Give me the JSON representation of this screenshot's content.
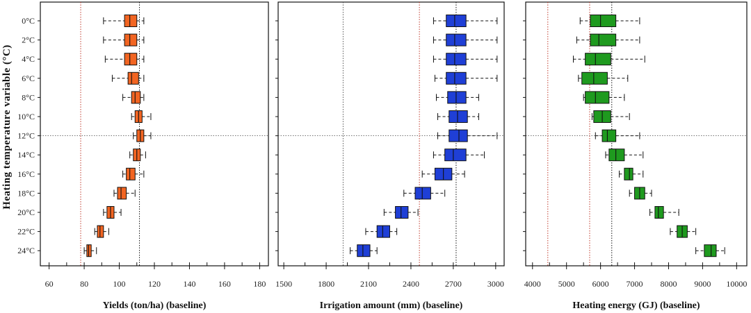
{
  "chart_data": {
    "type": "boxplot",
    "ylabel": "Heating temperature variable (°C)",
    "categories": [
      "0°C",
      "2°C",
      "4°C",
      "6°C",
      "8°C",
      "10°C",
      "12°C",
      "14°C",
      "16°C",
      "18°C",
      "20°C",
      "22°C",
      "24°C"
    ],
    "baseline_row": "12°C",
    "panels": [
      {
        "xlabel": "Yields (ton/ha) (baseline)",
        "xlim": [
          55,
          185
        ],
        "ticks": [
          60,
          80,
          100,
          120,
          140,
          160,
          180
        ],
        "color": "#f26522",
        "whisker_style": "dashed",
        "vlines": [
          {
            "value": 78,
            "color": "#c0392b",
            "style": "dotted"
          },
          {
            "value": 111.5,
            "color": "#111111",
            "style": "dotted"
          }
        ],
        "boxes": [
          {
            "low": 91,
            "q1": 103,
            "median": 106,
            "q3": 110,
            "high": 114
          },
          {
            "low": 91,
            "q1": 103,
            "median": 106,
            "q3": 110,
            "high": 114
          },
          {
            "low": 92,
            "q1": 103,
            "median": 106,
            "q3": 110,
            "high": 114
          },
          {
            "low": 96,
            "q1": 105,
            "median": 107,
            "q3": 111,
            "high": 114
          },
          {
            "low": 102,
            "q1": 107,
            "median": 109,
            "q3": 112,
            "high": 114
          },
          {
            "low": 107,
            "q1": 109,
            "median": 111,
            "q3": 113,
            "high": 118
          },
          {
            "low": 108,
            "q1": 110,
            "median": 112,
            "q3": 114,
            "high": 118
          },
          {
            "low": 106,
            "q1": 108,
            "median": 110,
            "q3": 112,
            "high": 115
          },
          {
            "low": 102,
            "q1": 104,
            "median": 106,
            "q3": 109,
            "high": 114
          },
          {
            "low": 97,
            "q1": 99,
            "median": 101,
            "q3": 104,
            "high": 109
          },
          {
            "low": 91,
            "q1": 93,
            "median": 95,
            "q3": 97,
            "high": 101
          },
          {
            "low": 86,
            "q1": 87.5,
            "median": 89,
            "q3": 91,
            "high": 94
          },
          {
            "low": 80,
            "q1": 81.5,
            "median": 82.5,
            "q3": 84,
            "high": 87
          }
        ]
      },
      {
        "xlabel": "Irrigation amount (mm) (baseline)",
        "xlim": [
          1460,
          3060
        ],
        "ticks": [
          1500,
          1800,
          2100,
          2400,
          2700,
          3000
        ],
        "color": "#1f3fd6",
        "whisker_style": "dashed",
        "vlines": [
          {
            "value": 1920,
            "color": "#555555",
            "style": "dotted"
          },
          {
            "value": 2460,
            "color": "#c0392b",
            "style": "dotted"
          },
          {
            "value": 2720,
            "color": "#111111",
            "style": "dotted"
          }
        ],
        "boxes": [
          {
            "low": 2560,
            "q1": 2650,
            "median": 2710,
            "q3": 2790,
            "high": 3010
          },
          {
            "low": 2560,
            "q1": 2650,
            "median": 2710,
            "q3": 2790,
            "high": 3010
          },
          {
            "low": 2560,
            "q1": 2650,
            "median": 2710,
            "q3": 2790,
            "high": 3010
          },
          {
            "low": 2570,
            "q1": 2650,
            "median": 2710,
            "q3": 2790,
            "high": 3010
          },
          {
            "low": 2580,
            "q1": 2660,
            "median": 2720,
            "q3": 2790,
            "high": 2880
          },
          {
            "low": 2590,
            "q1": 2670,
            "median": 2730,
            "q3": 2800,
            "high": 2880
          },
          {
            "low": 2590,
            "q1": 2670,
            "median": 2740,
            "q3": 2800,
            "high": 3010
          },
          {
            "low": 2560,
            "q1": 2640,
            "median": 2700,
            "q3": 2790,
            "high": 2920
          },
          {
            "low": 2480,
            "q1": 2570,
            "median": 2630,
            "q3": 2690,
            "high": 2780
          },
          {
            "low": 2350,
            "q1": 2430,
            "median": 2480,
            "q3": 2540,
            "high": 2640
          },
          {
            "low": 2210,
            "q1": 2290,
            "median": 2330,
            "q3": 2380,
            "high": 2450
          },
          {
            "low": 2080,
            "q1": 2160,
            "median": 2200,
            "q3": 2250,
            "high": 2300
          },
          {
            "low": 1970,
            "q1": 2020,
            "median": 2060,
            "q3": 2110,
            "high": 2160
          }
        ]
      },
      {
        "xlabel": "Heating energy (GJ) (baseline)",
        "xlim": [
          3800,
          10300
        ],
        "ticks": [
          4000,
          5000,
          6000,
          7000,
          8000,
          9000,
          10000
        ],
        "color": "#1f9a1f",
        "whisker_style": "dashed",
        "vlines": [
          {
            "value": 4450,
            "color": "#c0392b",
            "style": "dotted"
          },
          {
            "value": 5680,
            "color": "#c0392b",
            "style": "dotted"
          },
          {
            "value": 6330,
            "color": "#111111",
            "style": "dotted"
          }
        ],
        "boxes": [
          {
            "low": 5400,
            "q1": 5700,
            "median": 6000,
            "q3": 6450,
            "high": 7150
          },
          {
            "low": 5300,
            "q1": 5700,
            "median": 5950,
            "q3": 6450,
            "high": 7150
          },
          {
            "low": 5200,
            "q1": 5550,
            "median": 5850,
            "q3": 6300,
            "high": 7300
          },
          {
            "low": 5350,
            "q1": 5450,
            "median": 5800,
            "q3": 6200,
            "high": 6800
          },
          {
            "low": 5500,
            "q1": 5550,
            "median": 5850,
            "q3": 6250,
            "high": 6700
          },
          {
            "low": 5750,
            "q1": 5800,
            "median": 6050,
            "q3": 6300,
            "high": 6850
          },
          {
            "low": 5850,
            "q1": 6050,
            "median": 6200,
            "q3": 6450,
            "high": 7150
          },
          {
            "low": 6150,
            "q1": 6250,
            "median": 6450,
            "q3": 6700,
            "high": 7250
          },
          {
            "low": 6550,
            "q1": 6700,
            "median": 6850,
            "q3": 6950,
            "high": 7250
          },
          {
            "low": 6850,
            "q1": 7000,
            "median": 7150,
            "q3": 7300,
            "high": 7500
          },
          {
            "low": 7450,
            "q1": 7600,
            "median": 7700,
            "q3": 7850,
            "high": 8300
          },
          {
            "low": 8050,
            "q1": 8250,
            "median": 8400,
            "q3": 8550,
            "high": 8800
          },
          {
            "low": 8800,
            "q1": 9050,
            "median": 9250,
            "q3": 9400,
            "high": 9650
          }
        ]
      }
    ]
  }
}
